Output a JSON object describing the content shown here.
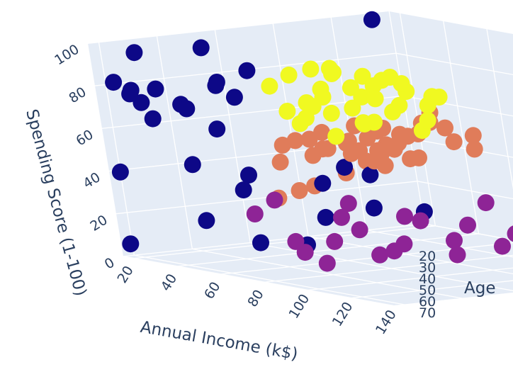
{
  "chart_data": {
    "type": "scatter3d",
    "axes": {
      "x": {
        "label": "Annual Income (k$)",
        "range": [
          15,
          140
        ],
        "ticks": [
          20,
          40,
          60,
          80,
          100,
          120,
          140
        ]
      },
      "y": {
        "label": "Spending Score (1-100)",
        "range": [
          0,
          100
        ],
        "ticks": [
          0,
          20,
          40,
          60,
          80,
          100
        ]
      },
      "z": {
        "label": "Age",
        "range": [
          18,
          70
        ],
        "ticks": [
          20,
          30,
          40,
          50,
          60,
          70
        ]
      }
    },
    "grid": true,
    "clusters": [
      {
        "color": "#0d0887",
        "points": [
          [
            15,
            39,
            20
          ],
          [
            16,
            81,
            21
          ],
          [
            17,
            6,
            19
          ],
          [
            18,
            77,
            23
          ],
          [
            19,
            40,
            31
          ],
          [
            20,
            76,
            22
          ],
          [
            21,
            94,
            35
          ],
          [
            22,
            72,
            23
          ],
          [
            23,
            99,
            64
          ],
          [
            24,
            15,
            30
          ],
          [
            25,
            77,
            35
          ],
          [
            26,
            13,
            58
          ],
          [
            27,
            79,
            24
          ],
          [
            28,
            35,
            37
          ],
          [
            29,
            66,
            22
          ],
          [
            30,
            29,
            35
          ],
          [
            31,
            98,
            20
          ],
          [
            32,
            35,
            52
          ],
          [
            33,
            73,
            35
          ],
          [
            34,
            5,
            35
          ],
          [
            35,
            73,
            25
          ],
          [
            36,
            14,
            46
          ],
          [
            37,
            82,
            31
          ],
          [
            38,
            32,
            54
          ],
          [
            39,
            61,
            29
          ],
          [
            40,
            31,
            45
          ],
          [
            41,
            87,
            35
          ],
          [
            42,
            4,
            40
          ],
          [
            43,
            73,
            23
          ],
          [
            44,
            14,
            60
          ]
        ]
      },
      {
        "color": "#e07c5a",
        "points": [
          [
            18,
            20,
            45
          ],
          [
            20,
            23,
            48
          ],
          [
            22,
            25,
            50
          ],
          [
            24,
            30,
            55
          ],
          [
            26,
            35,
            58
          ],
          [
            28,
            38,
            60
          ],
          [
            30,
            40,
            42
          ],
          [
            32,
            42,
            47
          ],
          [
            34,
            45,
            49
          ],
          [
            36,
            48,
            52
          ],
          [
            38,
            50,
            40
          ],
          [
            40,
            52,
            44
          ],
          [
            42,
            54,
            56
          ],
          [
            44,
            55,
            62
          ],
          [
            46,
            50,
            48
          ],
          [
            48,
            52,
            51
          ],
          [
            50,
            55,
            38
          ],
          [
            52,
            58,
            42
          ],
          [
            54,
            60,
            47
          ],
          [
            56,
            57,
            50
          ],
          [
            58,
            55,
            53
          ],
          [
            60,
            50,
            45
          ],
          [
            62,
            52,
            49
          ],
          [
            64,
            56,
            54
          ],
          [
            66,
            58,
            58
          ],
          [
            68,
            55,
            36
          ],
          [
            70,
            52,
            40
          ],
          [
            72,
            48,
            43
          ],
          [
            74,
            53,
            46
          ],
          [
            76,
            56,
            59
          ],
          [
            78,
            49,
            47
          ],
          [
            80,
            55,
            41
          ],
          [
            82,
            58,
            44
          ],
          [
            84,
            52,
            56
          ],
          [
            86,
            57,
            52
          ],
          [
            88,
            50,
            39
          ],
          [
            28,
            45,
            65
          ],
          [
            34,
            52,
            67
          ],
          [
            46,
            60,
            63
          ],
          [
            54,
            42,
            57
          ]
        ]
      },
      {
        "color": "#8e2496",
        "points": [
          [
            70,
            29,
            22
          ],
          [
            72,
            35,
            25
          ],
          [
            74,
            10,
            28
          ],
          [
            76,
            16,
            26
          ],
          [
            78,
            5,
            30
          ],
          [
            80,
            26,
            33
          ],
          [
            82,
            20,
            35
          ],
          [
            84,
            8,
            37
          ],
          [
            86,
            17,
            29
          ],
          [
            88,
            13,
            40
          ],
          [
            90,
            35,
            31
          ],
          [
            92,
            24,
            42
          ],
          [
            94,
            12,
            36
          ],
          [
            96,
            28,
            38
          ],
          [
            98,
            15,
            45
          ],
          [
            100,
            22,
            47
          ],
          [
            102,
            32,
            50
          ],
          [
            104,
            10,
            43
          ],
          [
            106,
            25,
            55
          ],
          [
            108,
            18,
            52
          ],
          [
            110,
            30,
            58
          ],
          [
            112,
            14,
            48
          ],
          [
            114,
            23,
            60
          ],
          [
            116,
            9,
            53
          ],
          [
            118,
            27,
            57
          ],
          [
            120,
            16,
            62
          ],
          [
            122,
            20,
            59
          ],
          [
            124,
            12,
            64
          ],
          [
            126,
            24,
            66
          ],
          [
            128,
            18,
            68
          ],
          [
            130,
            22,
            70
          ],
          [
            132,
            14,
            58
          ],
          [
            134,
            26,
            63
          ],
          [
            136,
            11,
            49
          ],
          [
            137,
            17,
            56
          ]
        ]
      },
      {
        "color": "#f0f921",
        "points": [
          [
            69,
            91,
            32
          ],
          [
            71,
            75,
            30
          ],
          [
            73,
            88,
            27
          ],
          [
            75,
            73,
            36
          ],
          [
            77,
            95,
            33
          ],
          [
            79,
            71,
            29
          ],
          [
            81,
            93,
            35
          ],
          [
            83,
            87,
            32
          ],
          [
            85,
            75,
            28
          ],
          [
            87,
            92,
            38
          ],
          [
            89,
            85,
            30
          ],
          [
            91,
            79,
            34
          ],
          [
            93,
            97,
            31
          ],
          [
            95,
            68,
            29
          ],
          [
            97,
            90,
            36
          ],
          [
            99,
            86,
            33
          ],
          [
            101,
            74,
            32
          ],
          [
            103,
            92,
            30
          ],
          [
            105,
            82,
            37
          ],
          [
            107,
            95,
            34
          ],
          [
            109,
            77,
            29
          ],
          [
            111,
            88,
            31
          ],
          [
            113,
            83,
            39
          ],
          [
            115,
            91,
            35
          ],
          [
            117,
            79,
            28
          ],
          [
            119,
            96,
            33
          ],
          [
            121,
            84,
            30
          ],
          [
            124,
            90,
            36
          ],
          [
            128,
            76,
            32
          ],
          [
            133,
            92,
            34
          ],
          [
            137,
            83,
            30
          ],
          [
            78,
            80,
            31
          ],
          [
            86,
            97,
            33
          ],
          [
            92,
            82,
            27
          ],
          [
            100,
            94,
            38
          ]
        ]
      }
    ]
  }
}
